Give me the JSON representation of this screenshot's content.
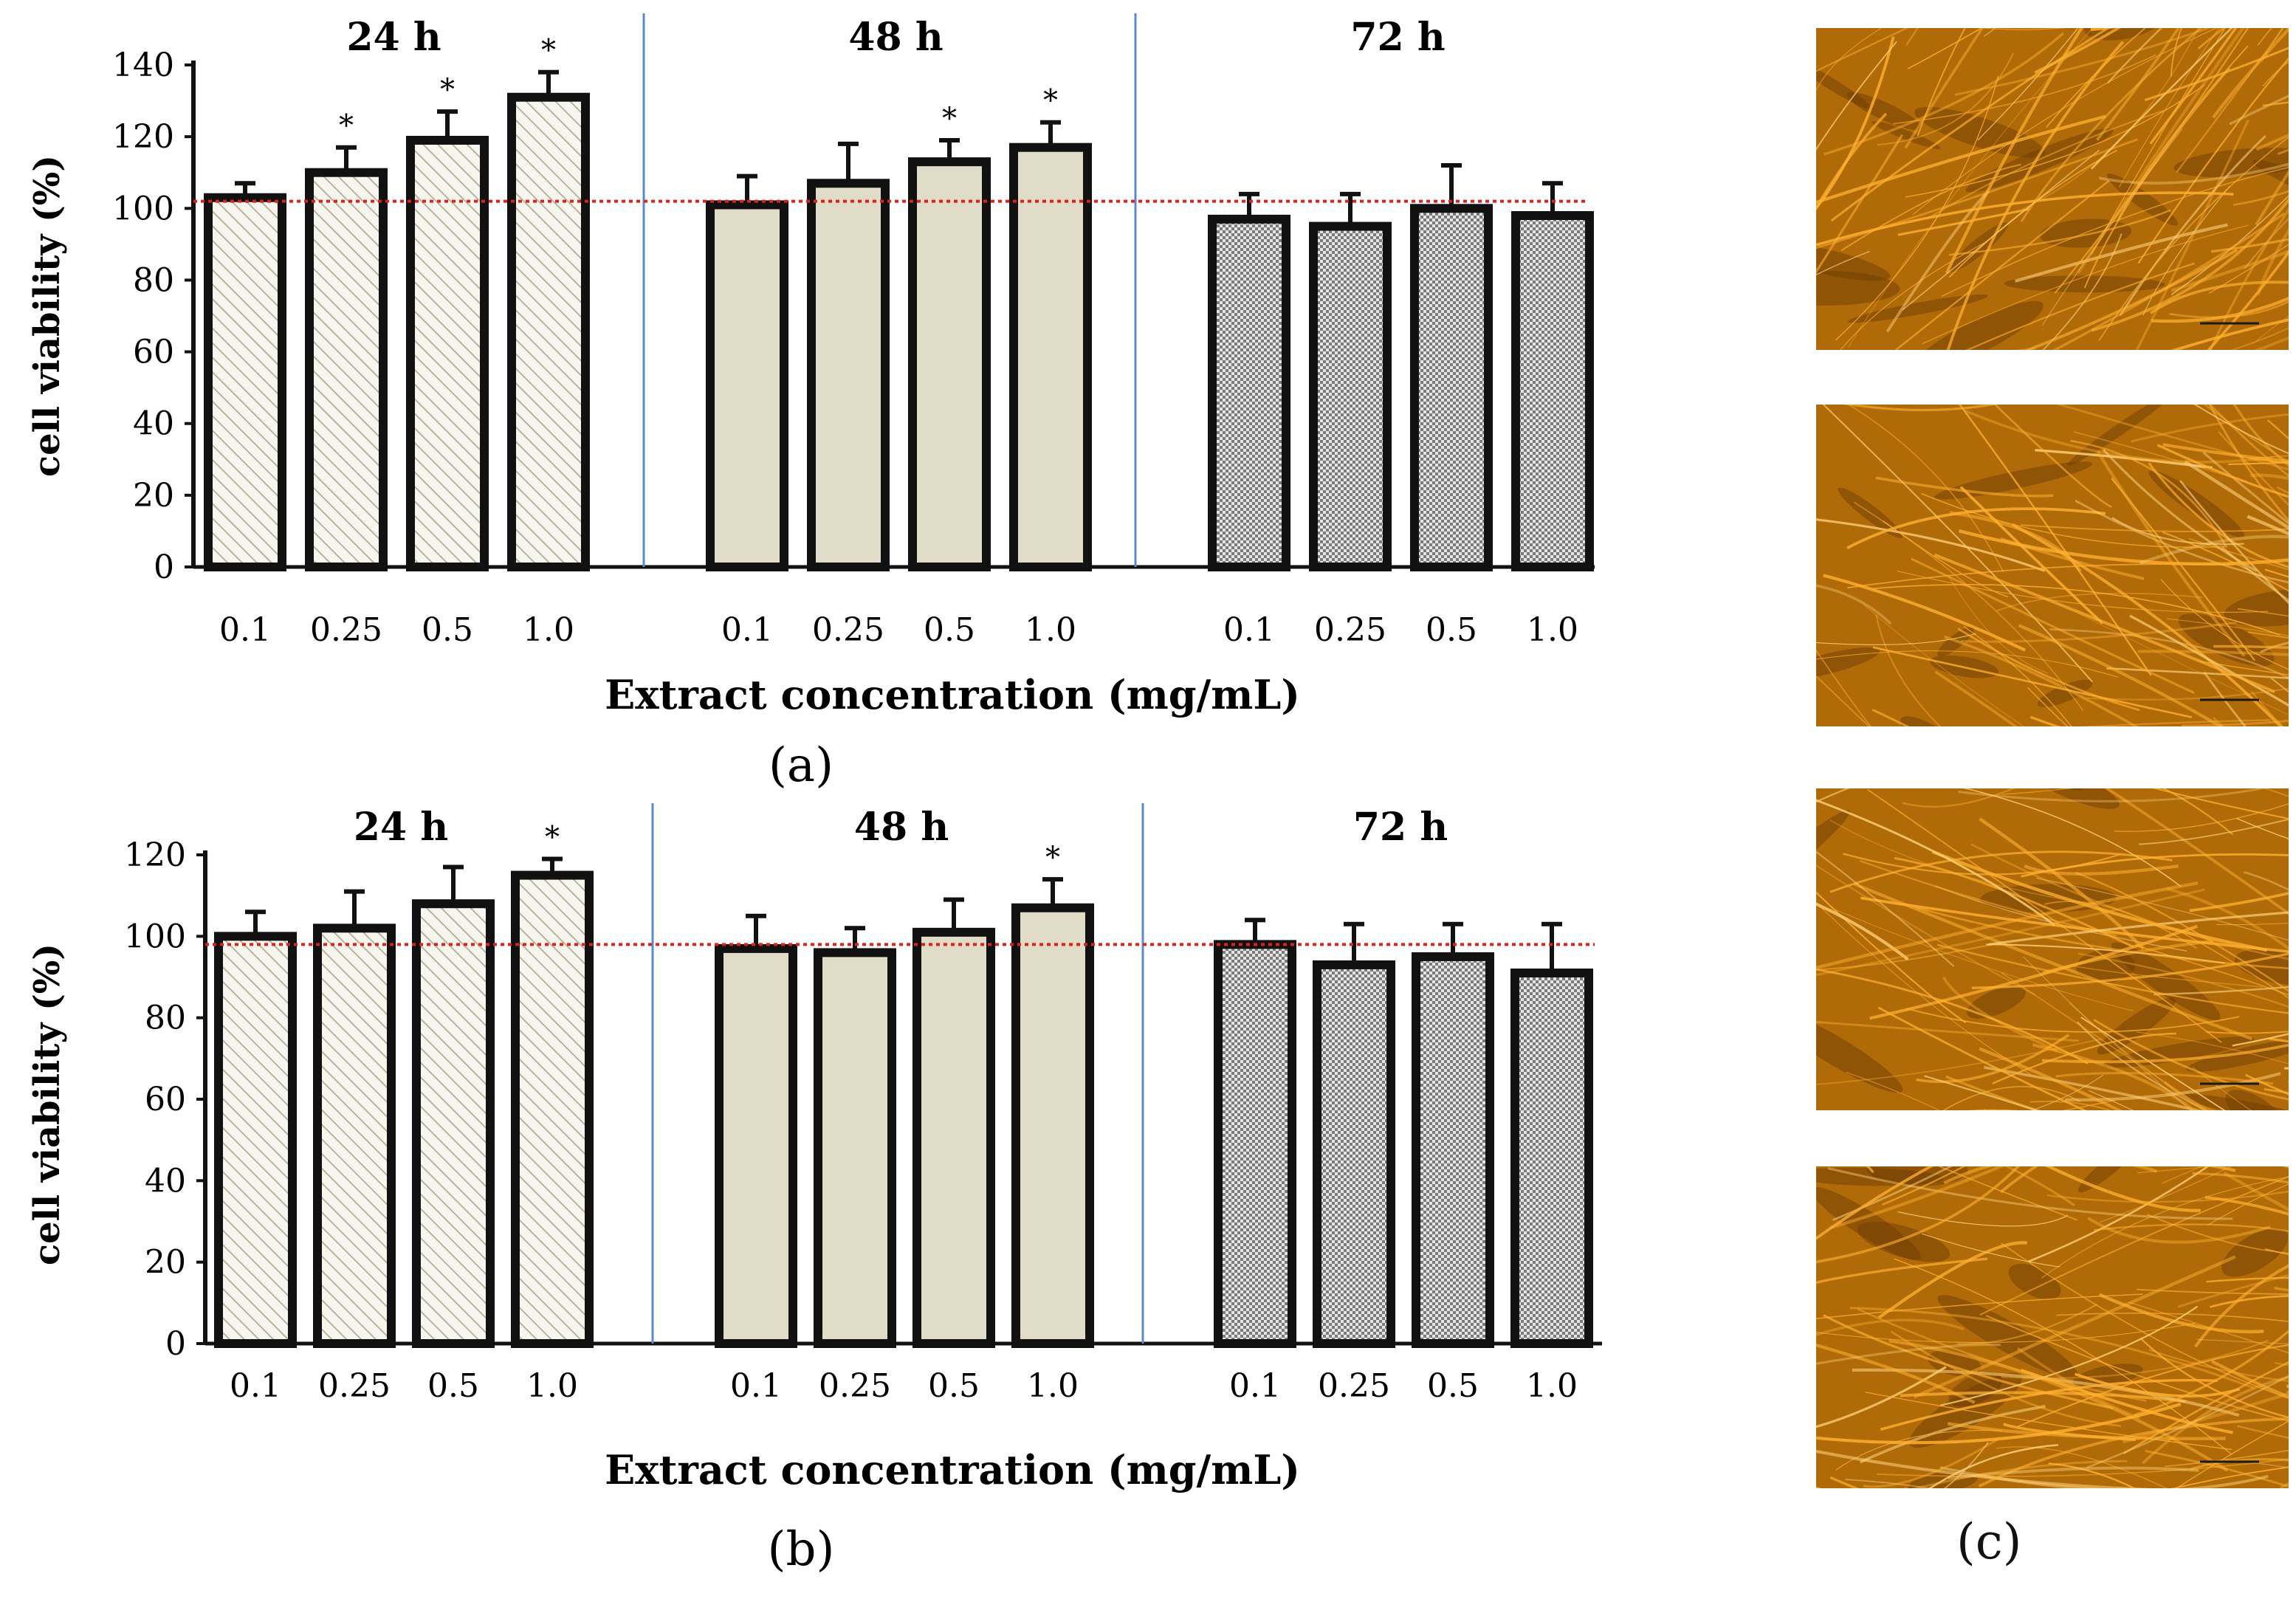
{
  "chart_data": [
    {
      "type": "bar",
      "panel_label": "(a)",
      "ylabel": "cell viability  (%)",
      "xlabel": "Extract concentration (mg/mL)",
      "yticks": [
        "0",
        "20",
        "40",
        "60",
        "80",
        "100",
        "120",
        "140"
      ],
      "ylim": [
        0,
        140
      ],
      "reference_line": 102,
      "groups": [
        {
          "title": "24 h",
          "pattern": "hatch",
          "categories": [
            "0.1",
            "0.25",
            "0.5",
            "1.0"
          ],
          "values": [
            103,
            110,
            119,
            131
          ],
          "errors": [
            4,
            7,
            8,
            7
          ],
          "significance": [
            "",
            "*",
            "*",
            "*"
          ]
        },
        {
          "title": "48 h",
          "pattern": "solid",
          "categories": [
            "0.1",
            "0.25",
            "0.5",
            "1.0"
          ],
          "values": [
            101,
            107,
            113,
            117
          ],
          "errors": [
            8,
            11,
            6,
            7
          ],
          "significance": [
            "",
            "",
            "*",
            "*"
          ]
        },
        {
          "title": "72 h",
          "pattern": "dots",
          "categories": [
            "0.1",
            "0.25",
            "0.5",
            "1.0"
          ],
          "values": [
            97,
            95,
            100,
            98
          ],
          "errors": [
            7,
            9,
            12,
            9
          ],
          "significance": [
            "",
            "",
            "",
            ""
          ]
        }
      ]
    },
    {
      "type": "bar",
      "panel_label": "(b)",
      "ylabel": "cell viability  (%)",
      "xlabel": "Extract concentration (mg/mL)",
      "yticks": [
        "0",
        "20",
        "40",
        "60",
        "80",
        "100",
        "120"
      ],
      "ylim": [
        0,
        120
      ],
      "reference_line": 98,
      "groups": [
        {
          "title": "24 h",
          "pattern": "hatch",
          "categories": [
            "0.1",
            "0.25",
            "0.5",
            "1.0"
          ],
          "values": [
            100,
            102,
            108,
            115
          ],
          "errors": [
            6,
            9,
            9,
            4
          ],
          "significance": [
            "",
            "",
            "",
            "*"
          ]
        },
        {
          "title": "48 h",
          "pattern": "solid",
          "categories": [
            "0.1",
            "0.25",
            "0.5",
            "1.0"
          ],
          "values": [
            97,
            96,
            101,
            107
          ],
          "errors": [
            8,
            6,
            8,
            7
          ],
          "significance": [
            "",
            "",
            "",
            "*"
          ]
        },
        {
          "title": "72 h",
          "pattern": "dots",
          "categories": [
            "0.1",
            "0.25",
            "0.5",
            "1.0"
          ],
          "values": [
            98,
            93,
            95,
            91
          ],
          "errors": [
            6,
            10,
            8,
            12
          ],
          "significance": [
            "",
            "",
            "",
            ""
          ]
        }
      ]
    }
  ],
  "panel_c": {
    "label": "(c)",
    "image_count": 4
  },
  "colors": {
    "bar_fill": "#e0dcc8",
    "hatch": "#b9b59c",
    "dots": "#7a7a7a",
    "reference_line": "#e0201b",
    "divider": "#5b8bc6",
    "micro_base": "#b06a08",
    "micro_fiber": "#ffb02e"
  }
}
